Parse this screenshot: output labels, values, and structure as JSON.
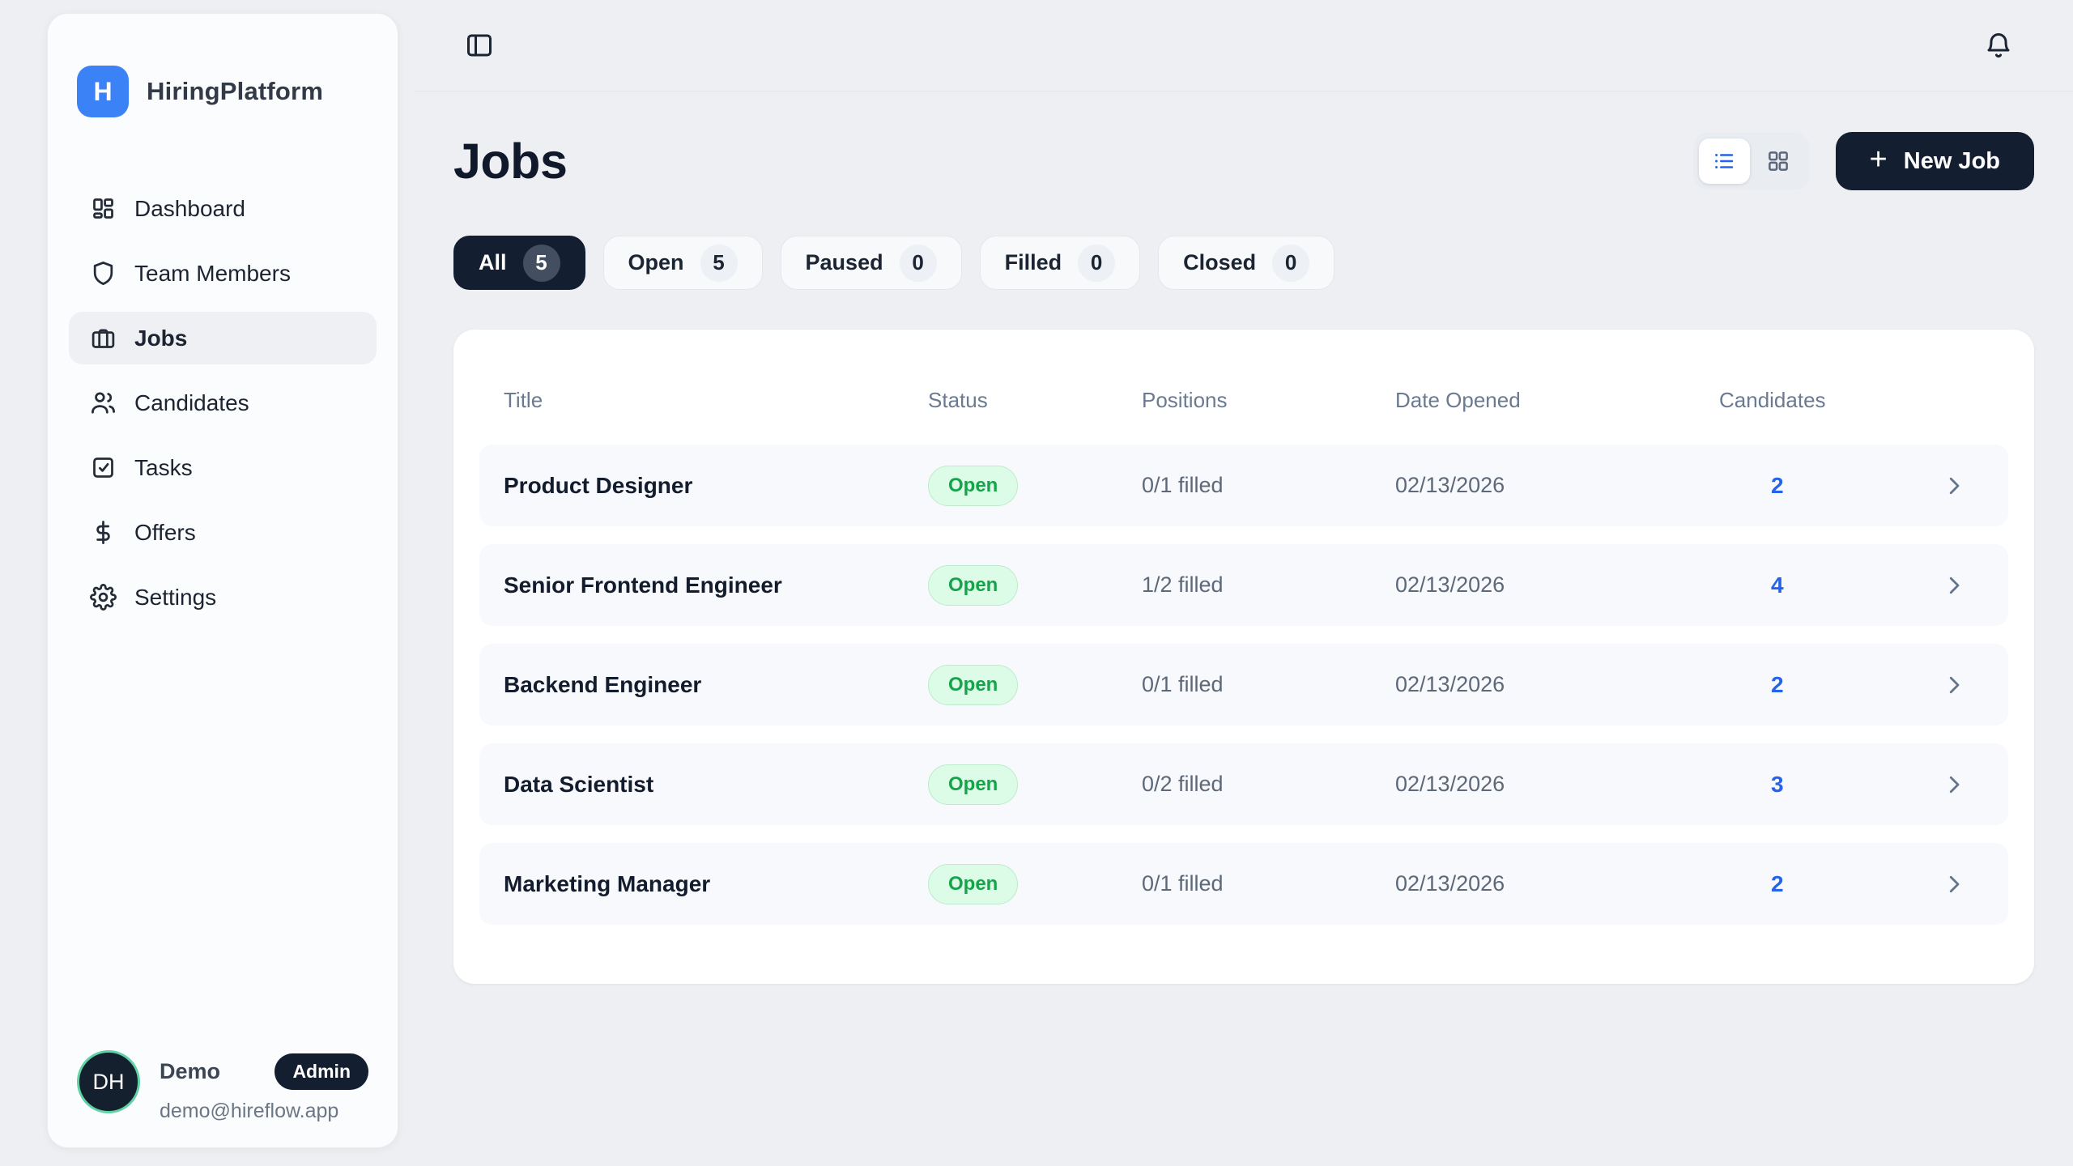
{
  "brand": {
    "logo_letter": "H",
    "name": "HiringPlatform"
  },
  "sidebar": {
    "items": [
      {
        "label": "Dashboard",
        "icon": "dashboard-grid-icon",
        "active": false
      },
      {
        "label": "Team Members",
        "icon": "shield-icon",
        "active": false
      },
      {
        "label": "Jobs",
        "icon": "briefcase-icon",
        "active": true
      },
      {
        "label": "Candidates",
        "icon": "users-icon",
        "active": false
      },
      {
        "label": "Tasks",
        "icon": "task-check-icon",
        "active": false
      },
      {
        "label": "Offers",
        "icon": "dollar-icon",
        "active": false
      },
      {
        "label": "Settings",
        "icon": "gear-icon",
        "active": false
      }
    ],
    "user": {
      "initials": "DH",
      "name": "Demo",
      "role_badge": "Admin",
      "email": "demo@hireflow.app"
    }
  },
  "topbar": {
    "left_icon": "panel-toggle-icon",
    "right_icon": "bell-icon"
  },
  "page": {
    "title": "Jobs",
    "new_job_label": "New Job",
    "new_job_plus": "+",
    "view_modes": [
      "list-view-icon",
      "grid-view-icon"
    ],
    "active_view": "list"
  },
  "filters": [
    {
      "label": "All",
      "count": "5",
      "active": true
    },
    {
      "label": "Open",
      "count": "5",
      "active": false
    },
    {
      "label": "Paused",
      "count": "0",
      "active": false
    },
    {
      "label": "Filled",
      "count": "0",
      "active": false
    },
    {
      "label": "Closed",
      "count": "0",
      "active": false
    }
  ],
  "table": {
    "columns": [
      "Title",
      "Status",
      "Positions",
      "Date Opened",
      "Candidates"
    ],
    "rows": [
      {
        "title": "Product Designer",
        "status": "Open",
        "positions": "0/1 filled",
        "date_opened": "02/13/2026",
        "candidates": "2"
      },
      {
        "title": "Senior Frontend Engineer",
        "status": "Open",
        "positions": "1/2 filled",
        "date_opened": "02/13/2026",
        "candidates": "4"
      },
      {
        "title": "Backend Engineer",
        "status": "Open",
        "positions": "0/1 filled",
        "date_opened": "02/13/2026",
        "candidates": "2"
      },
      {
        "title": "Data Scientist",
        "status": "Open",
        "positions": "0/2 filled",
        "date_opened": "02/13/2026",
        "candidates": "3"
      },
      {
        "title": "Marketing Manager",
        "status": "Open",
        "positions": "0/1 filled",
        "date_opened": "02/13/2026",
        "candidates": "2"
      }
    ]
  },
  "colors": {
    "page_bg": "#edeff2",
    "navy": "#131e30",
    "brand_blue": "#3b82f6",
    "link_blue": "#2563eb",
    "badge_green_bg": "#dcfce7",
    "badge_green_text": "#16a34a",
    "avatar_ring": "#5fd3a3",
    "row_bg": "#f7f9fc",
    "muted_text": "#5d6878",
    "header_text": "#6b7a90"
  }
}
